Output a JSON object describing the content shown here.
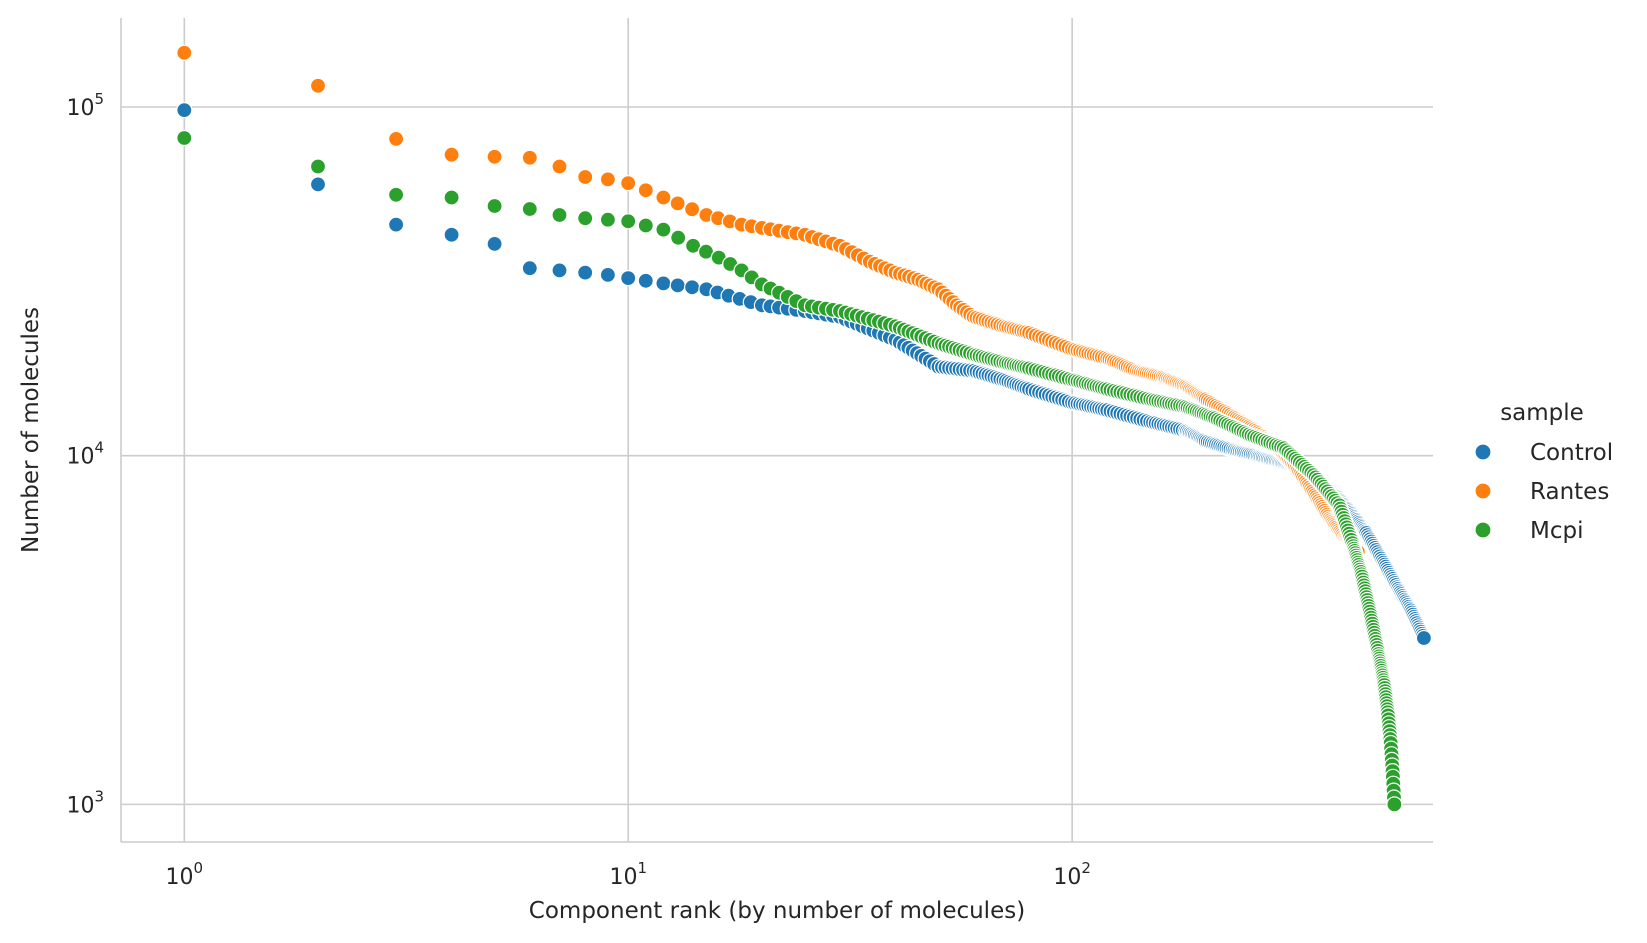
{
  "chart_data": {
    "type": "scatter",
    "title": "",
    "xlabel": "Component rank (by number of molecules)",
    "ylabel": "Number of molecules",
    "xscale": "log",
    "yscale": "log",
    "xlim": [
      0.72,
      650
    ],
    "ylim": [
      780,
      180000
    ],
    "grid": true,
    "x_ticks": [
      {
        "value": 1,
        "base": "10",
        "exp": "0"
      },
      {
        "value": 10,
        "base": "10",
        "exp": "1"
      },
      {
        "value": 100,
        "base": "10",
        "exp": "2"
      }
    ],
    "y_ticks": [
      {
        "value": 1000,
        "base": "10",
        "exp": "3"
      },
      {
        "value": 10000,
        "base": "10",
        "exp": "4"
      },
      {
        "value": 100000,
        "base": "10",
        "exp": "5"
      }
    ],
    "legend": {
      "title": "sample",
      "placement": "right",
      "entries": [
        {
          "label": "Control",
          "color": "#1f77b4"
        },
        {
          "label": "Rantes",
          "color": "#ff7f0e"
        },
        {
          "label": "Mcpi",
          "color": "#2ca02c"
        }
      ]
    },
    "series": [
      {
        "name": "Control",
        "color": "#1f77b4",
        "points": [
          [
            1,
            98000
          ],
          [
            2,
            60000
          ],
          [
            3,
            46000
          ],
          [
            4,
            43000
          ],
          [
            5,
            40500
          ],
          [
            6,
            34500
          ],
          [
            7,
            34000
          ],
          [
            8,
            33500
          ],
          [
            9,
            33000
          ],
          [
            10,
            32300
          ],
          [
            12,
            31200
          ],
          [
            15,
            30000
          ],
          [
            20,
            27000
          ],
          [
            25,
            26000
          ],
          [
            30,
            25000
          ],
          [
            40,
            21500
          ],
          [
            50,
            18000
          ],
          [
            60,
            17500
          ],
          [
            70,
            16500
          ],
          [
            80,
            15500
          ],
          [
            100,
            14200
          ],
          [
            120,
            13500
          ],
          [
            150,
            12500
          ],
          [
            180,
            11800
          ],
          [
            200,
            11000
          ],
          [
            230,
            10400
          ],
          [
            260,
            10000
          ],
          [
            290,
            9600
          ],
          [
            320,
            9200
          ],
          [
            350,
            8700
          ],
          [
            380,
            8200
          ],
          [
            400,
            7600
          ],
          [
            430,
            6800
          ],
          [
            460,
            6000
          ],
          [
            500,
            5000
          ],
          [
            540,
            4200
          ],
          [
            580,
            3600
          ],
          [
            620,
            3000
          ]
        ]
      },
      {
        "name": "Rantes",
        "color": "#ff7f0e",
        "points": [
          [
            1,
            143000
          ],
          [
            2,
            115000
          ],
          [
            3,
            81000
          ],
          [
            4,
            73000
          ],
          [
            5,
            72000
          ],
          [
            6,
            71500
          ],
          [
            7,
            67500
          ],
          [
            8,
            63000
          ],
          [
            9,
            62000
          ],
          [
            10,
            60500
          ],
          [
            12,
            55000
          ],
          [
            15,
            49000
          ],
          [
            18,
            46000
          ],
          [
            20,
            45000
          ],
          [
            25,
            43000
          ],
          [
            30,
            40000
          ],
          [
            35,
            36000
          ],
          [
            40,
            33500
          ],
          [
            45,
            32000
          ],
          [
            50,
            30000
          ],
          [
            55,
            27000
          ],
          [
            60,
            25000
          ],
          [
            70,
            23500
          ],
          [
            80,
            22500
          ],
          [
            100,
            20200
          ],
          [
            120,
            19000
          ],
          [
            140,
            17500
          ],
          [
            160,
            16800
          ],
          [
            180,
            15800
          ],
          [
            200,
            14500
          ],
          [
            230,
            13000
          ],
          [
            260,
            11800
          ],
          [
            290,
            10500
          ],
          [
            320,
            9200
          ],
          [
            350,
            7800
          ],
          [
            380,
            6600
          ],
          [
            410,
            5800
          ],
          [
            440,
            5300
          ]
        ]
      },
      {
        "name": "Mcpi",
        "color": "#2ca02c",
        "points": [
          [
            1,
            81500
          ],
          [
            2,
            67500
          ],
          [
            3,
            56000
          ],
          [
            4,
            55000
          ],
          [
            5,
            52000
          ],
          [
            6,
            51000
          ],
          [
            7,
            49000
          ],
          [
            8,
            48000
          ],
          [
            9,
            47500
          ],
          [
            10,
            47000
          ],
          [
            12,
            44500
          ],
          [
            14,
            40000
          ],
          [
            16,
            37000
          ],
          [
            18,
            34000
          ],
          [
            20,
            31000
          ],
          [
            25,
            27000
          ],
          [
            30,
            26000
          ],
          [
            40,
            23500
          ],
          [
            50,
            21000
          ],
          [
            60,
            19500
          ],
          [
            70,
            18500
          ],
          [
            80,
            17800
          ],
          [
            100,
            16500
          ],
          [
            120,
            15500
          ],
          [
            150,
            14500
          ],
          [
            180,
            13800
          ],
          [
            210,
            12800
          ],
          [
            250,
            11500
          ],
          [
            300,
            10500
          ],
          [
            350,
            8800
          ],
          [
            400,
            7200
          ],
          [
            430,
            5500
          ],
          [
            450,
            4500
          ],
          [
            470,
            3500
          ],
          [
            490,
            2700
          ],
          [
            505,
            2200
          ],
          [
            515,
            1800
          ],
          [
            522,
            1500
          ],
          [
            528,
            1200
          ],
          [
            532,
            1000
          ]
        ]
      }
    ]
  }
}
